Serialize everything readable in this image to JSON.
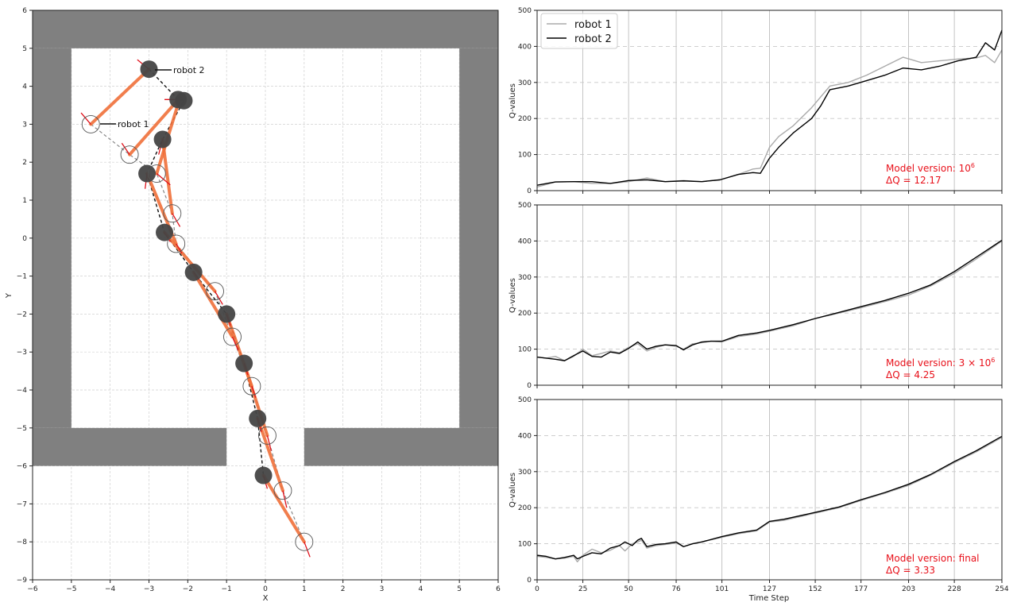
{
  "chart_data": [
    {
      "type": "scatter",
      "title": "",
      "xlabel": "X",
      "ylabel": "Y",
      "xlim": [
        -6,
        6
      ],
      "ylim": [
        -9,
        6
      ],
      "xticks": [
        "−6",
        "−5",
        "−4",
        "−3",
        "−2",
        "−1",
        "0",
        "1",
        "2",
        "3",
        "4",
        "5",
        "6"
      ],
      "yticks": [
        "6",
        "5",
        "4",
        "3",
        "2",
        "1",
        "0",
        "−1",
        "−2",
        "−3",
        "−4",
        "−5",
        "−6",
        "−7",
        "−8",
        "−9"
      ],
      "grid": true,
      "walls": [
        {
          "x0": -6,
          "y0": 5,
          "x1": 6,
          "y1": 6
        },
        {
          "x0": -6,
          "y0": -5,
          "x1": -5,
          "y1": 5
        },
        {
          "x0": 5,
          "y0": -5,
          "x1": 6,
          "y1": 5
        },
        {
          "x0": -6,
          "y0": -6,
          "x1": -1,
          "y1": -5
        },
        {
          "x0": 1,
          "y0": -6,
          "x1": 6,
          "y1": -5
        }
      ],
      "annotations": [
        {
          "text": "robot 2",
          "x": -3.0,
          "y": 4.4
        },
        {
          "text": "robot 1",
          "x": -4.5,
          "y": 3.0
        }
      ],
      "robot1_positions": [
        [
          -4.5,
          3.0
        ],
        [
          -3.5,
          2.2
        ],
        [
          -2.8,
          1.7
        ],
        [
          -2.4,
          0.65
        ],
        [
          -2.3,
          -0.15
        ],
        [
          -1.3,
          -1.4
        ],
        [
          -0.85,
          -2.6
        ],
        [
          -0.35,
          -3.9
        ],
        [
          0.05,
          -5.2
        ],
        [
          0.45,
          -6.65
        ],
        [
          1.0,
          -8.0
        ]
      ],
      "robot2_positions": [
        [
          -3.0,
          4.45
        ],
        [
          -2.25,
          3.65
        ],
        [
          -2.1,
          3.62
        ],
        [
          -2.65,
          2.6
        ],
        [
          -3.05,
          1.7
        ],
        [
          -2.6,
          0.15
        ],
        [
          -1.85,
          -0.9
        ],
        [
          -1.0,
          -2.0
        ],
        [
          -0.55,
          -3.3
        ],
        [
          -0.2,
          -4.75
        ],
        [
          -0.05,
          -6.25
        ]
      ],
      "links": [
        [
          [
            -4.5,
            3.0
          ],
          [
            -3.0,
            4.45
          ]
        ],
        [
          [
            -3.5,
            2.2
          ],
          [
            -2.2,
            3.7
          ]
        ],
        [
          [
            -2.8,
            1.7
          ],
          [
            -2.2,
            3.7
          ]
        ],
        [
          [
            -2.4,
            0.65
          ],
          [
            -2.65,
            2.6
          ]
        ],
        [
          [
            -2.3,
            -0.15
          ],
          [
            -3.05,
            1.7
          ]
        ],
        [
          [
            -1.3,
            -1.4
          ],
          [
            -2.6,
            0.15
          ]
        ],
        [
          [
            -0.85,
            -2.6
          ],
          [
            -1.85,
            -0.9
          ]
        ],
        [
          [
            -0.35,
            -3.9
          ],
          [
            -1.0,
            -2.0
          ]
        ],
        [
          [
            0.05,
            -5.2
          ],
          [
            -0.55,
            -3.3
          ]
        ],
        [
          [
            0.45,
            -6.65
          ],
          [
            -0.2,
            -4.75
          ]
        ],
        [
          [
            1.0,
            -8.0
          ],
          [
            -0.05,
            -6.25
          ]
        ]
      ]
    },
    {
      "type": "line",
      "xlabel": "",
      "ylabel": "Q-values",
      "xlim": [
        0,
        254
      ],
      "ylim": [
        0,
        500
      ],
      "yticks": [
        "0",
        "100",
        "200",
        "300",
        "400",
        "500"
      ],
      "xticks": [
        0,
        25,
        50,
        76,
        101,
        127,
        152,
        177,
        203,
        228,
        254
      ],
      "legend": [
        "robot 1",
        "robot 2"
      ],
      "legend_position": "upper left",
      "annotation": {
        "line1": "Model version: 10⁶",
        "line2": "ΔQ = 12.17"
      },
      "x": [
        0,
        10,
        20,
        30,
        40,
        50,
        60,
        70,
        80,
        90,
        100,
        110,
        118,
        122,
        127,
        132,
        140,
        150,
        155,
        160,
        170,
        180,
        190,
        200,
        210,
        220,
        230,
        240,
        245,
        250,
        254
      ],
      "series": [
        {
          "name": "robot 1",
          "color": "#aaaaaa",
          "values": [
            10,
            24,
            25,
            20,
            20,
            25,
            35,
            25,
            28,
            25,
            30,
            45,
            60,
            62,
            120,
            150,
            180,
            230,
            260,
            290,
            300,
            320,
            345,
            370,
            355,
            360,
            365,
            368,
            375,
            355,
            390
          ]
        },
        {
          "name": "robot 2",
          "color": "#000000",
          "values": [
            15,
            24,
            25,
            25,
            20,
            28,
            30,
            25,
            27,
            25,
            30,
            45,
            50,
            48,
            90,
            120,
            160,
            200,
            235,
            280,
            290,
            305,
            320,
            340,
            335,
            345,
            360,
            370,
            410,
            390,
            445
          ]
        }
      ]
    },
    {
      "type": "line",
      "xlabel": "",
      "ylabel": "Q-values",
      "xlim": [
        0,
        254
      ],
      "ylim": [
        0,
        500
      ],
      "yticks": [
        "0",
        "100",
        "200",
        "300",
        "400",
        "500"
      ],
      "xticks": [
        0,
        25,
        50,
        76,
        101,
        127,
        152,
        177,
        203,
        228,
        254
      ],
      "annotation": {
        "line1": "Model version: 3 × 10⁶",
        "line2": "ΔQ = 4.25"
      },
      "x": [
        0,
        5,
        10,
        15,
        20,
        25,
        30,
        35,
        40,
        45,
        50,
        55,
        60,
        65,
        70,
        76,
        80,
        85,
        90,
        95,
        101,
        110,
        120,
        127,
        140,
        152,
        165,
        177,
        190,
        203,
        215,
        228,
        240,
        254
      ],
      "series": [
        {
          "name": "robot 1",
          "color": "#aaaaaa",
          "values": [
            78,
            75,
            80,
            68,
            80,
            100,
            82,
            88,
            95,
            90,
            105,
            115,
            95,
            105,
            112,
            108,
            100,
            115,
            118,
            122,
            120,
            135,
            142,
            150,
            165,
            185,
            200,
            215,
            232,
            250,
            275,
            310,
            350,
            400
          ]
        },
        {
          "name": "robot 2",
          "color": "#000000",
          "values": [
            78,
            75,
            72,
            68,
            82,
            95,
            80,
            78,
            92,
            88,
            102,
            120,
            100,
            108,
            112,
            110,
            98,
            112,
            120,
            122,
            122,
            138,
            145,
            152,
            168,
            185,
            202,
            218,
            235,
            255,
            278,
            315,
            355,
            402
          ]
        }
      ]
    },
    {
      "type": "line",
      "xlabel": "Time Step",
      "ylabel": "Q-values",
      "xlim": [
        0,
        254
      ],
      "ylim": [
        0,
        500
      ],
      "yticks": [
        "0",
        "100",
        "200",
        "300",
        "400",
        "500"
      ],
      "xticks": [
        0,
        25,
        50,
        76,
        101,
        127,
        152,
        177,
        203,
        228,
        254
      ],
      "annotation": {
        "line1": "Model version: final",
        "line2": "ΔQ = 3.33"
      },
      "x": [
        0,
        5,
        10,
        15,
        20,
        22,
        25,
        30,
        35,
        40,
        45,
        48,
        52,
        55,
        57,
        60,
        65,
        70,
        76,
        80,
        85,
        90,
        101,
        110,
        120,
        127,
        135,
        152,
        165,
        177,
        190,
        203,
        215,
        228,
        240,
        254
      ],
      "series": [
        {
          "name": "robot 1",
          "color": "#aaaaaa",
          "values": [
            65,
            62,
            58,
            60,
            65,
            50,
            68,
            85,
            75,
            82,
            95,
            80,
            100,
            105,
            110,
            88,
            95,
            98,
            102,
            92,
            100,
            105,
            118,
            128,
            136,
            160,
            165,
            185,
            200,
            220,
            240,
            262,
            290,
            325,
            355,
            395
          ]
        },
        {
          "name": "robot 2",
          "color": "#000000",
          "values": [
            68,
            65,
            58,
            62,
            68,
            58,
            65,
            75,
            72,
            88,
            95,
            105,
            95,
            110,
            115,
            92,
            98,
            100,
            105,
            92,
            100,
            105,
            120,
            130,
            138,
            162,
            168,
            187,
            202,
            222,
            242,
            265,
            292,
            328,
            358,
            398
          ]
        }
      ]
    }
  ],
  "left_plot": {
    "xlabel": "X",
    "ylabel": "Y",
    "robot1_label": "robot 1",
    "robot2_label": "robot 2"
  },
  "right_plots": {
    "ylabel": "Q-values",
    "xlabel": "Time Step",
    "legend": {
      "robot1": "robot 1",
      "robot2": "robot 2"
    },
    "panel1": {
      "line1": "Model version: 10",
      "sup1": "6",
      "line2": "ΔQ = 12.17"
    },
    "panel2": {
      "line1": "Model version: 3 × 10",
      "sup1": "6",
      "line2": "ΔQ = 4.25"
    },
    "panel3": {
      "line1": "Model version: final",
      "line2": "ΔQ = 3.33"
    }
  },
  "colors": {
    "wall": "#808080",
    "link": "#f0703a",
    "heading": "#e0101a",
    "robot2_fill": "#454545",
    "robot1_stroke": "#555555",
    "annotation": "#e8101a",
    "series_robot1": "#aaaaaa",
    "series_robot2": "#000000"
  }
}
